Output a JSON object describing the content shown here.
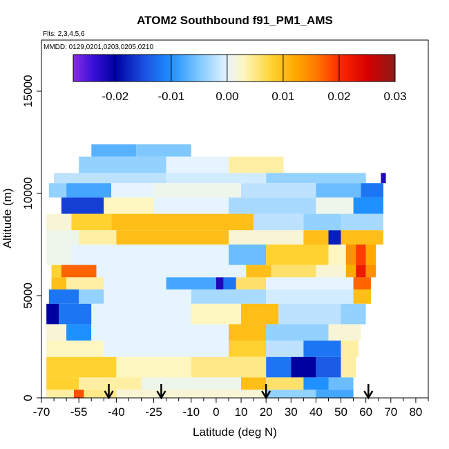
{
  "chart_data": {
    "type": "heatmap",
    "title": "ATOM2 Southbound f91_PM1_AMS",
    "flights_note": "Flts: 2,3,4,5,6",
    "dates_note": "MMDD: 0129,0201,0203,0205,0210",
    "xlabel": "Latitude (deg N)",
    "ylabel": "Altitude (m)",
    "xlim": [
      -70,
      85
    ],
    "ylim": [
      0,
      17500
    ],
    "x_ticks": [
      -70,
      -55,
      -40,
      -25,
      -10,
      0,
      10,
      20,
      30,
      40,
      50,
      60,
      70,
      80
    ],
    "x_tick_labels": [
      "-70",
      "-55",
      "-40",
      "-25",
      "-10",
      "0",
      "10",
      "20",
      "30",
      "40",
      "50",
      "60",
      "70",
      "80"
    ],
    "x_minor_ticks": [
      -65,
      -60,
      -50,
      -45,
      -35,
      -30,
      -20,
      -15,
      -5,
      5,
      15,
      25,
      35,
      45,
      55,
      65,
      75,
      85
    ],
    "y_ticks": [
      0,
      5000,
      10000,
      15000
    ],
    "y_tick_labels": [
      "0",
      "5000",
      "10000",
      "15000"
    ],
    "colorbar": {
      "min": -0.0275,
      "max": 0.03,
      "ticks": [
        -0.02,
        -0.01,
        0.0,
        0.01,
        0.02,
        0.03
      ],
      "tick_labels": [
        "-0.02",
        "-0.01",
        "0.00",
        "0.01",
        "0.02",
        "0.03"
      ],
      "stops": [
        {
          "v": -0.0275,
          "c": "#8a2be2"
        },
        {
          "v": -0.024,
          "c": "#3a10d8"
        },
        {
          "v": -0.02,
          "c": "#0000a0"
        },
        {
          "v": -0.015,
          "c": "#1a4ee0"
        },
        {
          "v": -0.01,
          "c": "#1e90ff"
        },
        {
          "v": -0.005,
          "c": "#7ec8ff"
        },
        {
          "v": 0.0,
          "c": "#e6f4ff"
        },
        {
          "v": 0.003,
          "c": "#fff6c0"
        },
        {
          "v": 0.008,
          "c": "#ffd230"
        },
        {
          "v": 0.012,
          "c": "#ffaa00"
        },
        {
          "v": 0.016,
          "c": "#ff7700"
        },
        {
          "v": 0.02,
          "c": "#ff2a00"
        },
        {
          "v": 0.025,
          "c": "#d80000"
        },
        {
          "v": 0.03,
          "c": "#8b1a1a"
        }
      ]
    },
    "arrow_latitudes": [
      -43,
      -22,
      20,
      61
    ],
    "altitude_bands": [
      {
        "alt_lo": 11800,
        "alt_hi": 12400,
        "segments": [
          {
            "lat_lo": -50,
            "lat_hi": -32,
            "v": -0.007
          },
          {
            "lat_lo": -32,
            "lat_hi": -10,
            "v": -0.005
          }
        ]
      },
      {
        "alt_lo": 11000,
        "alt_hi": 11800,
        "segments": [
          {
            "lat_lo": -55,
            "lat_hi": -20,
            "v": -0.004
          },
          {
            "lat_lo": -20,
            "lat_hi": 5,
            "v": 0.0
          },
          {
            "lat_lo": 5,
            "lat_hi": 27,
            "v": 0.004
          }
        ]
      },
      {
        "alt_lo": 10500,
        "alt_hi": 11000,
        "segments": [
          {
            "lat_lo": -65,
            "lat_hi": -20,
            "v": -0.002
          },
          {
            "lat_lo": -20,
            "lat_hi": 20,
            "v": -0.001
          },
          {
            "lat_lo": 20,
            "lat_hi": 60,
            "v": -0.004
          },
          {
            "lat_lo": 66,
            "lat_hi": 68,
            "v": -0.022
          }
        ]
      },
      {
        "alt_lo": 9800,
        "alt_hi": 10500,
        "segments": [
          {
            "lat_lo": -67,
            "lat_hi": -60,
            "v": -0.004
          },
          {
            "lat_lo": -60,
            "lat_hi": -42,
            "v": -0.008
          },
          {
            "lat_lo": -42,
            "lat_hi": -25,
            "v": 0.0
          },
          {
            "lat_lo": -25,
            "lat_hi": 10,
            "v": 0.001
          },
          {
            "lat_lo": 10,
            "lat_hi": 40,
            "v": -0.002
          },
          {
            "lat_lo": 40,
            "lat_hi": 58,
            "v": -0.006
          },
          {
            "lat_lo": 58,
            "lat_hi": 67,
            "v": -0.012
          }
        ]
      },
      {
        "alt_lo": 9000,
        "alt_hi": 9800,
        "segments": [
          {
            "lat_lo": -62,
            "lat_hi": -45,
            "v": -0.016
          },
          {
            "lat_lo": -45,
            "lat_hi": -25,
            "v": 0.003
          },
          {
            "lat_lo": -25,
            "lat_hi": 5,
            "v": 0.0
          },
          {
            "lat_lo": 5,
            "lat_hi": 40,
            "v": -0.003
          },
          {
            "lat_lo": 40,
            "lat_hi": 55,
            "v": 0.001
          },
          {
            "lat_lo": 55,
            "lat_hi": 67,
            "v": -0.01
          }
        ]
      },
      {
        "alt_lo": 8200,
        "alt_hi": 9000,
        "segments": [
          {
            "lat_lo": -68,
            "lat_hi": -58,
            "v": 0.002
          },
          {
            "lat_lo": -58,
            "lat_hi": -42,
            "v": 0.008
          },
          {
            "lat_lo": -42,
            "lat_hi": 15,
            "v": 0.01
          },
          {
            "lat_lo": 15,
            "lat_hi": 35,
            "v": -0.002
          },
          {
            "lat_lo": 35,
            "lat_hi": 50,
            "v": -0.004
          },
          {
            "lat_lo": 50,
            "lat_hi": 67,
            "v": -0.003
          }
        ]
      },
      {
        "alt_lo": 7500,
        "alt_hi": 8200,
        "segments": [
          {
            "lat_lo": -68,
            "lat_hi": -55,
            "v": 0.001
          },
          {
            "lat_lo": -55,
            "lat_hi": -40,
            "v": 0.004
          },
          {
            "lat_lo": -40,
            "lat_hi": 5,
            "v": 0.01
          },
          {
            "lat_lo": 5,
            "lat_hi": 35,
            "v": 0.002
          },
          {
            "lat_lo": 35,
            "lat_hi": 45,
            "v": 0.01
          },
          {
            "lat_lo": 45,
            "lat_hi": 50,
            "v": -0.018
          },
          {
            "lat_lo": 50,
            "lat_hi": 67,
            "v": 0.01
          }
        ]
      },
      {
        "alt_lo": 6500,
        "alt_hi": 7500,
        "segments": [
          {
            "lat_lo": -68,
            "lat_hi": -58,
            "v": 0.001
          },
          {
            "lat_lo": -58,
            "lat_hi": 5,
            "v": 0.0
          },
          {
            "lat_lo": 5,
            "lat_hi": 20,
            "v": -0.006
          },
          {
            "lat_lo": 20,
            "lat_hi": 45,
            "v": 0.008
          },
          {
            "lat_lo": 45,
            "lat_hi": 52,
            "v": 0.003
          },
          {
            "lat_lo": 52,
            "lat_hi": 56,
            "v": 0.014
          },
          {
            "lat_lo": 56,
            "lat_hi": 60,
            "v": 0.019
          },
          {
            "lat_lo": 60,
            "lat_hi": 64,
            "v": 0.012
          }
        ]
      },
      {
        "alt_lo": 5900,
        "alt_hi": 6500,
        "segments": [
          {
            "lat_lo": -66,
            "lat_hi": -62,
            "v": 0.008
          },
          {
            "lat_lo": -62,
            "lat_hi": -48,
            "v": 0.017
          },
          {
            "lat_lo": -48,
            "lat_hi": 12,
            "v": 0.0
          },
          {
            "lat_lo": 12,
            "lat_hi": 22,
            "v": 0.01
          },
          {
            "lat_lo": 22,
            "lat_hi": 40,
            "v": 0.006
          },
          {
            "lat_lo": 40,
            "lat_hi": 52,
            "v": 0.002
          },
          {
            "lat_lo": 52,
            "lat_hi": 56,
            "v": 0.012
          },
          {
            "lat_lo": 56,
            "lat_hi": 60,
            "v": 0.022
          },
          {
            "lat_lo": 60,
            "lat_hi": 64,
            "v": 0.014
          }
        ]
      },
      {
        "alt_lo": 5300,
        "alt_hi": 5900,
        "segments": [
          {
            "lat_lo": -66,
            "lat_hi": -60,
            "v": 0.01
          },
          {
            "lat_lo": -60,
            "lat_hi": -45,
            "v": 0.004
          },
          {
            "lat_lo": -45,
            "lat_hi": -20,
            "v": 0.0
          },
          {
            "lat_lo": -20,
            "lat_hi": 0,
            "v": -0.008
          },
          {
            "lat_lo": 0,
            "lat_hi": 3,
            "v": -0.022
          },
          {
            "lat_lo": 3,
            "lat_hi": 8,
            "v": -0.012
          },
          {
            "lat_lo": 8,
            "lat_hi": 20,
            "v": 0.006
          },
          {
            "lat_lo": 20,
            "lat_hi": 55,
            "v": 0.0
          },
          {
            "lat_lo": 55,
            "lat_hi": 62,
            "v": 0.017
          }
        ]
      },
      {
        "alt_lo": 4600,
        "alt_hi": 5300,
        "segments": [
          {
            "lat_lo": -67,
            "lat_hi": -55,
            "v": -0.012
          },
          {
            "lat_lo": -55,
            "lat_hi": -45,
            "v": -0.004
          },
          {
            "lat_lo": -45,
            "lat_hi": -10,
            "v": 0.0
          },
          {
            "lat_lo": -10,
            "lat_hi": 20,
            "v": -0.003
          },
          {
            "lat_lo": 20,
            "lat_hi": 55,
            "v": -0.001
          },
          {
            "lat_lo": 55,
            "lat_hi": 62,
            "v": 0.01
          }
        ]
      },
      {
        "alt_lo": 3600,
        "alt_hi": 4600,
        "segments": [
          {
            "lat_lo": -68,
            "lat_hi": -63,
            "v": -0.02
          },
          {
            "lat_lo": -63,
            "lat_hi": -50,
            "v": -0.012
          },
          {
            "lat_lo": -50,
            "lat_hi": -10,
            "v": 0.0
          },
          {
            "lat_lo": -10,
            "lat_hi": 10,
            "v": 0.003
          },
          {
            "lat_lo": 10,
            "lat_hi": 25,
            "v": 0.01
          },
          {
            "lat_lo": 25,
            "lat_hi": 50,
            "v": -0.002
          },
          {
            "lat_lo": 50,
            "lat_hi": 60,
            "v": -0.004
          }
        ]
      },
      {
        "alt_lo": 2800,
        "alt_hi": 3600,
        "segments": [
          {
            "lat_lo": -68,
            "lat_hi": -60,
            "v": 0.002
          },
          {
            "lat_lo": -60,
            "lat_hi": -50,
            "v": -0.01
          },
          {
            "lat_lo": -50,
            "lat_hi": 5,
            "v": 0.0
          },
          {
            "lat_lo": 5,
            "lat_hi": 20,
            "v": 0.01
          },
          {
            "lat_lo": 20,
            "lat_hi": 45,
            "v": -0.004
          },
          {
            "lat_lo": 45,
            "lat_hi": 58,
            "v": 0.002
          }
        ]
      },
      {
        "alt_lo": 2000,
        "alt_hi": 2800,
        "segments": [
          {
            "lat_lo": -68,
            "lat_hi": -45,
            "v": 0.003
          },
          {
            "lat_lo": -45,
            "lat_hi": 5,
            "v": 0.0
          },
          {
            "lat_lo": 5,
            "lat_hi": 20,
            "v": 0.008
          },
          {
            "lat_lo": 20,
            "lat_hi": 35,
            "v": -0.002
          },
          {
            "lat_lo": 35,
            "lat_hi": 50,
            "v": -0.012
          },
          {
            "lat_lo": 50,
            "lat_hi": 57,
            "v": 0.004
          }
        ]
      },
      {
        "alt_lo": 1000,
        "alt_hi": 2000,
        "segments": [
          {
            "lat_lo": -68,
            "lat_hi": -40,
            "v": 0.008
          },
          {
            "lat_lo": -40,
            "lat_hi": -10,
            "v": 0.003
          },
          {
            "lat_lo": -10,
            "lat_hi": 20,
            "v": 0.005
          },
          {
            "lat_lo": 20,
            "lat_hi": 30,
            "v": -0.012
          },
          {
            "lat_lo": 30,
            "lat_hi": 40,
            "v": -0.02
          },
          {
            "lat_lo": 40,
            "lat_hi": 50,
            "v": -0.014
          },
          {
            "lat_lo": 50,
            "lat_hi": 56,
            "v": 0.004
          }
        ]
      },
      {
        "alt_lo": 400,
        "alt_hi": 1000,
        "segments": [
          {
            "lat_lo": -68,
            "lat_hi": -55,
            "v": 0.008
          },
          {
            "lat_lo": -55,
            "lat_hi": -30,
            "v": 0.004
          },
          {
            "lat_lo": -30,
            "lat_hi": 10,
            "v": 0.001
          },
          {
            "lat_lo": 10,
            "lat_hi": 20,
            "v": 0.01
          },
          {
            "lat_lo": 20,
            "lat_hi": 35,
            "v": 0.006
          },
          {
            "lat_lo": 35,
            "lat_hi": 45,
            "v": -0.01
          },
          {
            "lat_lo": 45,
            "lat_hi": 55,
            "v": -0.006
          }
        ]
      },
      {
        "alt_lo": 0,
        "alt_hi": 400,
        "segments": [
          {
            "lat_lo": -68,
            "lat_hi": -57,
            "v": 0.004
          },
          {
            "lat_lo": -57,
            "lat_hi": -53,
            "v": 0.018
          },
          {
            "lat_lo": -53,
            "lat_hi": -40,
            "v": 0.005
          },
          {
            "lat_lo": -40,
            "lat_hi": 20,
            "v": 0.002
          },
          {
            "lat_lo": 20,
            "lat_hi": 40,
            "v": -0.004
          },
          {
            "lat_lo": 40,
            "lat_hi": 55,
            "v": -0.008
          }
        ]
      }
    ]
  }
}
